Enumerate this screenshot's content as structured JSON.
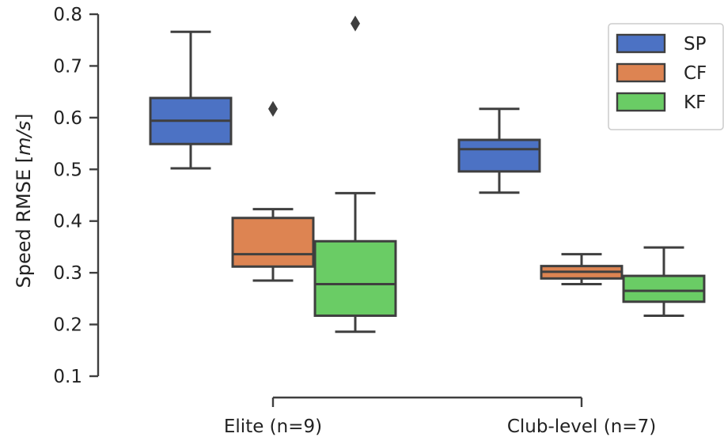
{
  "chart_data": {
    "type": "box",
    "title": "",
    "xlabel": "",
    "ylabel": "Speed RMSE [m/s]",
    "ylabel_parts": [
      "Speed RMSE [",
      "m/s",
      "]"
    ],
    "ylim": [
      0.1,
      0.8
    ],
    "yticks": [
      0.1,
      0.2,
      0.3,
      0.4,
      0.5,
      0.6,
      0.7,
      0.8
    ],
    "ytick_labels": [
      "0.1",
      "0.2",
      "0.3",
      "0.4",
      "0.5",
      "0.6",
      "0.7",
      "0.8"
    ],
    "categories": [
      "Elite (n=9)",
      "Club-level (n=7)"
    ],
    "grid": false,
    "legend_position": "top-right",
    "series": [
      {
        "name": "SP",
        "color": "#4c72c4",
        "boxes": [
          {
            "whisker_low": 0.502,
            "q1": 0.549,
            "median": 0.594,
            "q3": 0.638,
            "whisker_high": 0.766,
            "outliers": []
          },
          {
            "whisker_low": 0.455,
            "q1": 0.496,
            "median": 0.539,
            "q3": 0.557,
            "whisker_high": 0.617,
            "outliers": []
          }
        ]
      },
      {
        "name": "CF",
        "color": "#dd8452",
        "boxes": [
          {
            "whisker_low": 0.285,
            "q1": 0.312,
            "median": 0.336,
            "q3": 0.406,
            "whisker_high": 0.423,
            "outliers": [
              0.617
            ]
          },
          {
            "whisker_low": 0.278,
            "q1": 0.289,
            "median": 0.302,
            "q3": 0.313,
            "whisker_high": 0.336,
            "outliers": []
          }
        ]
      },
      {
        "name": "KF",
        "color": "#6acc65",
        "boxes": [
          {
            "whisker_low": 0.186,
            "q1": 0.217,
            "median": 0.278,
            "q3": 0.361,
            "whisker_high": 0.454,
            "outliers": [
              0.782
            ]
          },
          {
            "whisker_low": 0.217,
            "q1": 0.244,
            "median": 0.265,
            "q3": 0.294,
            "whisker_high": 0.349,
            "outliers": []
          }
        ]
      }
    ]
  }
}
